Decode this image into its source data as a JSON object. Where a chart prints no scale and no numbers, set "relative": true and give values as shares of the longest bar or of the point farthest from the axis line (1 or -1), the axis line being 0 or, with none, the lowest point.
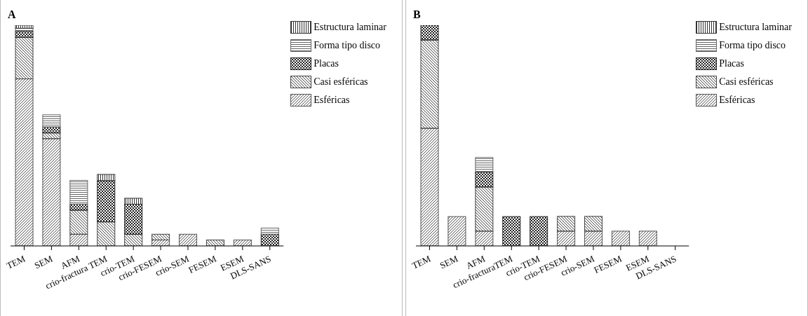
{
  "chart_data": [
    {
      "type": "bar",
      "title": "A",
      "stacked": true,
      "relative": true,
      "legend": "top right",
      "categories": [
        "TEM",
        "SEM",
        "AFM",
        "crio-fractura TEM",
        "crio-TEM",
        "crio-FESEM",
        "crio-SEM",
        "FESEM",
        "ESEM",
        "DLS-SANS"
      ],
      "series": [
        {
          "name": "Esféricas",
          "color": "#555555",
          "values": [
            0.757,
            0.486,
            0.053,
            0,
            0,
            0.027,
            0.053,
            0,
            0.027,
            0
          ]
        },
        {
          "name": "Casi esféricas",
          "color": "#444444",
          "values": [
            0.188,
            0.026,
            0.109,
            0.109,
            0.053,
            0.026,
            0,
            0.027,
            0,
            0
          ]
        },
        {
          "name": "Placas",
          "color": "#222222",
          "values": [
            0.027,
            0.027,
            0.027,
            0.186,
            0.136,
            0,
            0,
            0,
            0,
            0.053
          ]
        },
        {
          "name": "Forma tipo disco",
          "color": "#666666",
          "values": [
            0.014,
            0.055,
            0.108,
            0,
            0,
            0,
            0,
            0,
            0,
            0.028
          ]
        },
        {
          "name": "Estructura laminar",
          "color": "#333333",
          "values": [
            0.014,
            0,
            0,
            0.029,
            0.027,
            0,
            0,
            0,
            0,
            0
          ]
        }
      ]
    },
    {
      "type": "bar",
      "title": "B",
      "stacked": true,
      "relative": true,
      "legend": "top right",
      "categories": [
        "TEM",
        "SEM",
        "AFM",
        "crio-fracturaTEM",
        "crio-TEM",
        "crio-FESEM",
        "crio-SEM",
        "FESEM",
        "ESEM",
        "DLS-SANS"
      ],
      "series": [
        {
          "name": "Esféricas",
          "color": "#555555",
          "values": [
            0.533,
            0.133,
            0.067,
            0,
            0,
            0.067,
            0.067,
            0.067,
            0.067,
            0
          ]
        },
        {
          "name": "Casi esféricas",
          "color": "#444444",
          "values": [
            0.4,
            0,
            0.2,
            0,
            0,
            0.067,
            0.067,
            0,
            0,
            0
          ]
        },
        {
          "name": "Placas",
          "color": "#222222",
          "values": [
            0.067,
            0,
            0.067,
            0.133,
            0.133,
            0,
            0,
            0,
            0,
            0
          ]
        },
        {
          "name": "Forma tipo disco",
          "color": "#666666",
          "values": [
            0,
            0,
            0.067,
            0,
            0,
            0,
            0,
            0,
            0,
            0
          ]
        },
        {
          "name": "Estructura laminar",
          "color": "#333333",
          "values": [
            0,
            0,
            0,
            0,
            0,
            0,
            0,
            0,
            0,
            0
          ]
        }
      ]
    }
  ]
}
